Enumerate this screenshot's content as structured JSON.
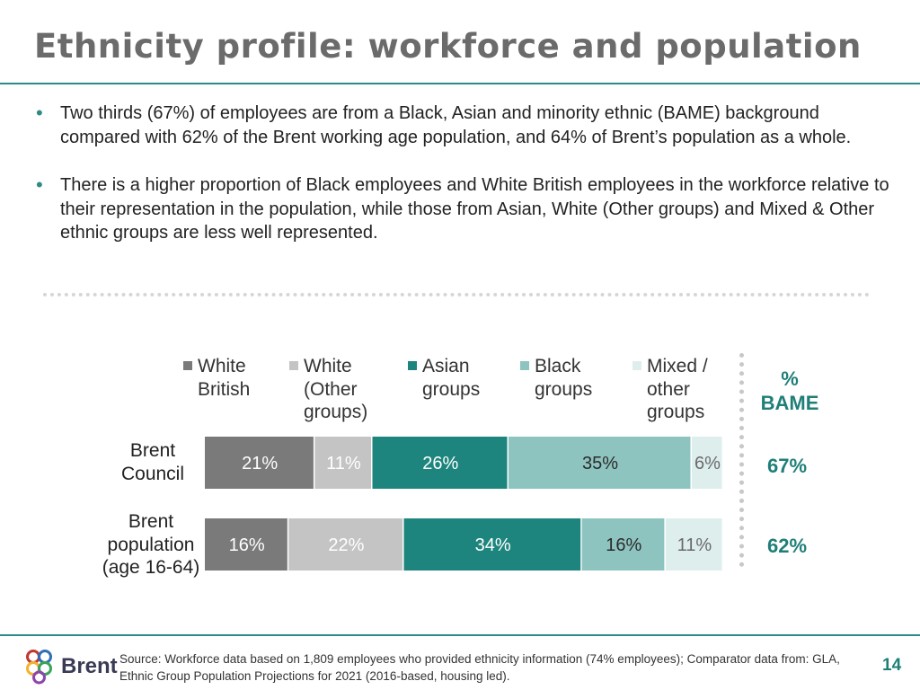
{
  "slide": {
    "title": "Ethnicity profile: workforce and population",
    "bullets": [
      "Two thirds (67%) of employees are from a Black, Asian and minority ethnic (BAME) background compared with 62% of the Brent working age population, and 64% of Brent’s population as a whole.",
      "There is a higher proportion of Black employees and White British employees in the workforce relative to their representation in the population, while those from Asian, White (Other groups) and Mixed & Other ethnic groups are less well represented."
    ],
    "bullet_symbol": "•",
    "bame_header": "%\nBAME",
    "bame_values": [
      "67%",
      "62%"
    ],
    "source": "Source: Workforce data based on 1,809 employees who provided ethnicity information (74% employees); Comparator data from: GLA, Ethnic Group Population Projections for 2021 (2016-based, housing led).",
    "logo_text": "Brent",
    "page_number": "14"
  },
  "chart_data": {
    "type": "bar",
    "orientation": "horizontal",
    "stacked": true,
    "categories": [
      "Brent\nCouncil",
      "Brent\npopulation\n(age 16-64)"
    ],
    "legend_position": "top",
    "series": [
      {
        "name": "White\nBritish",
        "values": [
          21,
          16
        ],
        "labels": [
          "21%",
          "16%"
        ],
        "color": "#7a7a7a",
        "label_color": "#ffffff"
      },
      {
        "name": "White\n(Other\ngroups)",
        "values": [
          11,
          22
        ],
        "labels": [
          "11%",
          "22%"
        ],
        "color": "#c4c4c4",
        "label_color": "#ffffff"
      },
      {
        "name": "Asian\ngroups",
        "values": [
          26,
          34
        ],
        "labels": [
          "26%",
          "34%"
        ],
        "color": "#1d857d",
        "label_color": "#ffffff"
      },
      {
        "name": "Black\ngroups",
        "values": [
          35,
          16
        ],
        "labels": [
          "35%",
          "16%"
        ],
        "color": "#8ec4bf",
        "label_color": "#2b2b2b"
      },
      {
        "name": "Mixed /\nother\ngroups",
        "values": [
          6,
          11
        ],
        "labels": [
          "6%",
          "11%"
        ],
        "color": "#ddeeed",
        "label_color": "#6a6a6a"
      }
    ]
  }
}
